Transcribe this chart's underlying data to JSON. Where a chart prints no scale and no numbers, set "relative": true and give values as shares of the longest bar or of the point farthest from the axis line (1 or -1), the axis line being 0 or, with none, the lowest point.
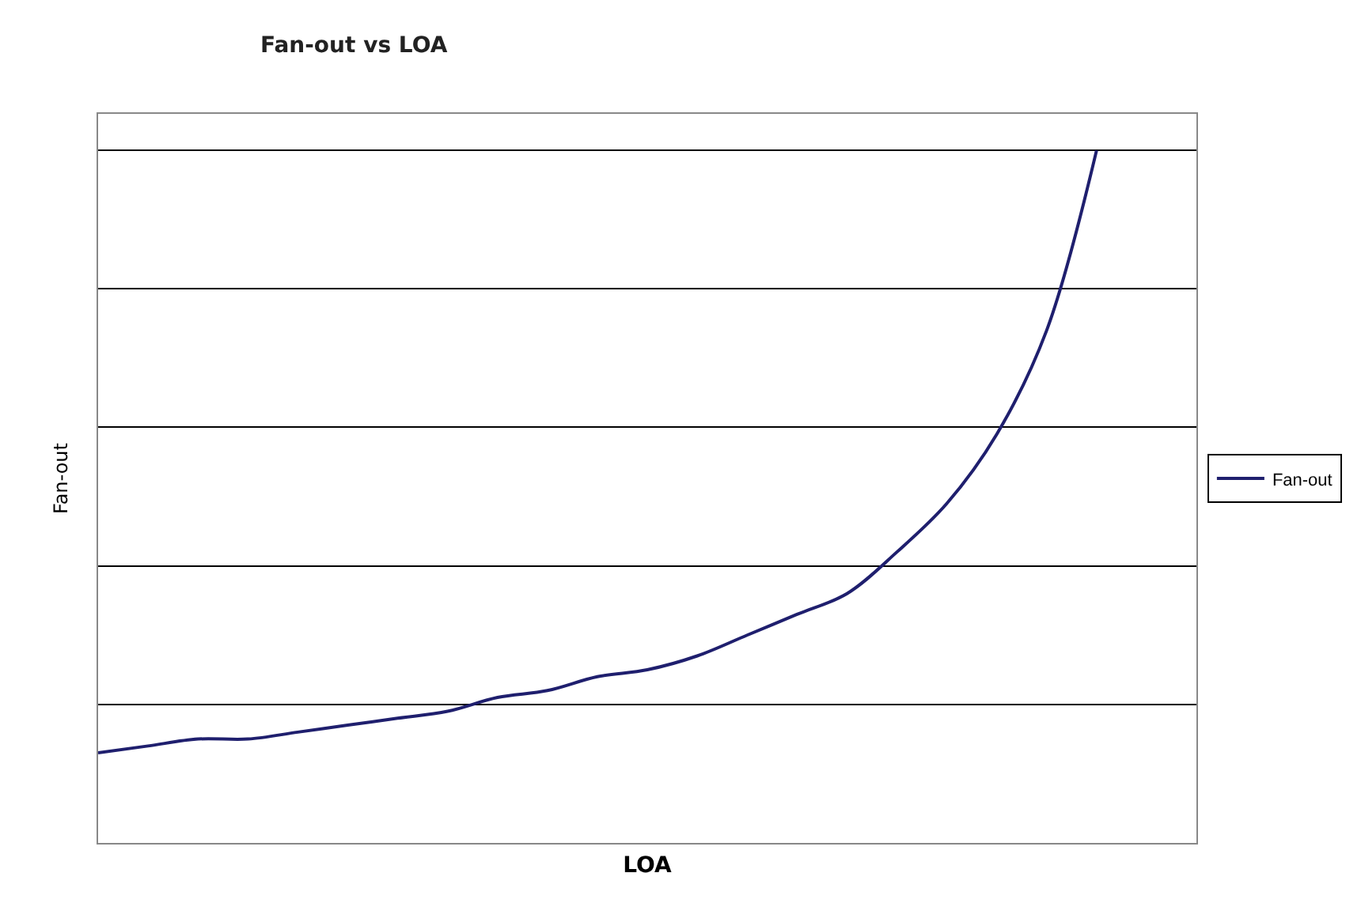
{
  "chart_data": {
    "type": "line",
    "title": "Fan-out vs LOA",
    "xlabel": "LOA",
    "ylabel": "Fan-out",
    "relative": true,
    "grid": "y",
    "legend": "right",
    "marker": "none",
    "line_style": "solid",
    "categories": [
      null,
      null,
      null,
      null,
      null,
      null,
      null,
      null,
      null,
      null,
      null,
      null,
      null,
      null,
      null,
      null,
      null,
      null,
      null,
      null,
      null,
      null,
      null
    ],
    "series": [
      {
        "name": "Fan-out",
        "color": "#1f1f6e",
        "values": [
          0.13,
          0.14,
          0.15,
          0.15,
          0.16,
          0.17,
          0.18,
          0.19,
          0.21,
          0.22,
          0.24,
          0.25,
          0.27,
          0.3,
          0.33,
          0.36,
          0.42,
          0.49,
          0.59,
          0.74,
          1.0,
          null,
          null
        ]
      }
    ]
  }
}
